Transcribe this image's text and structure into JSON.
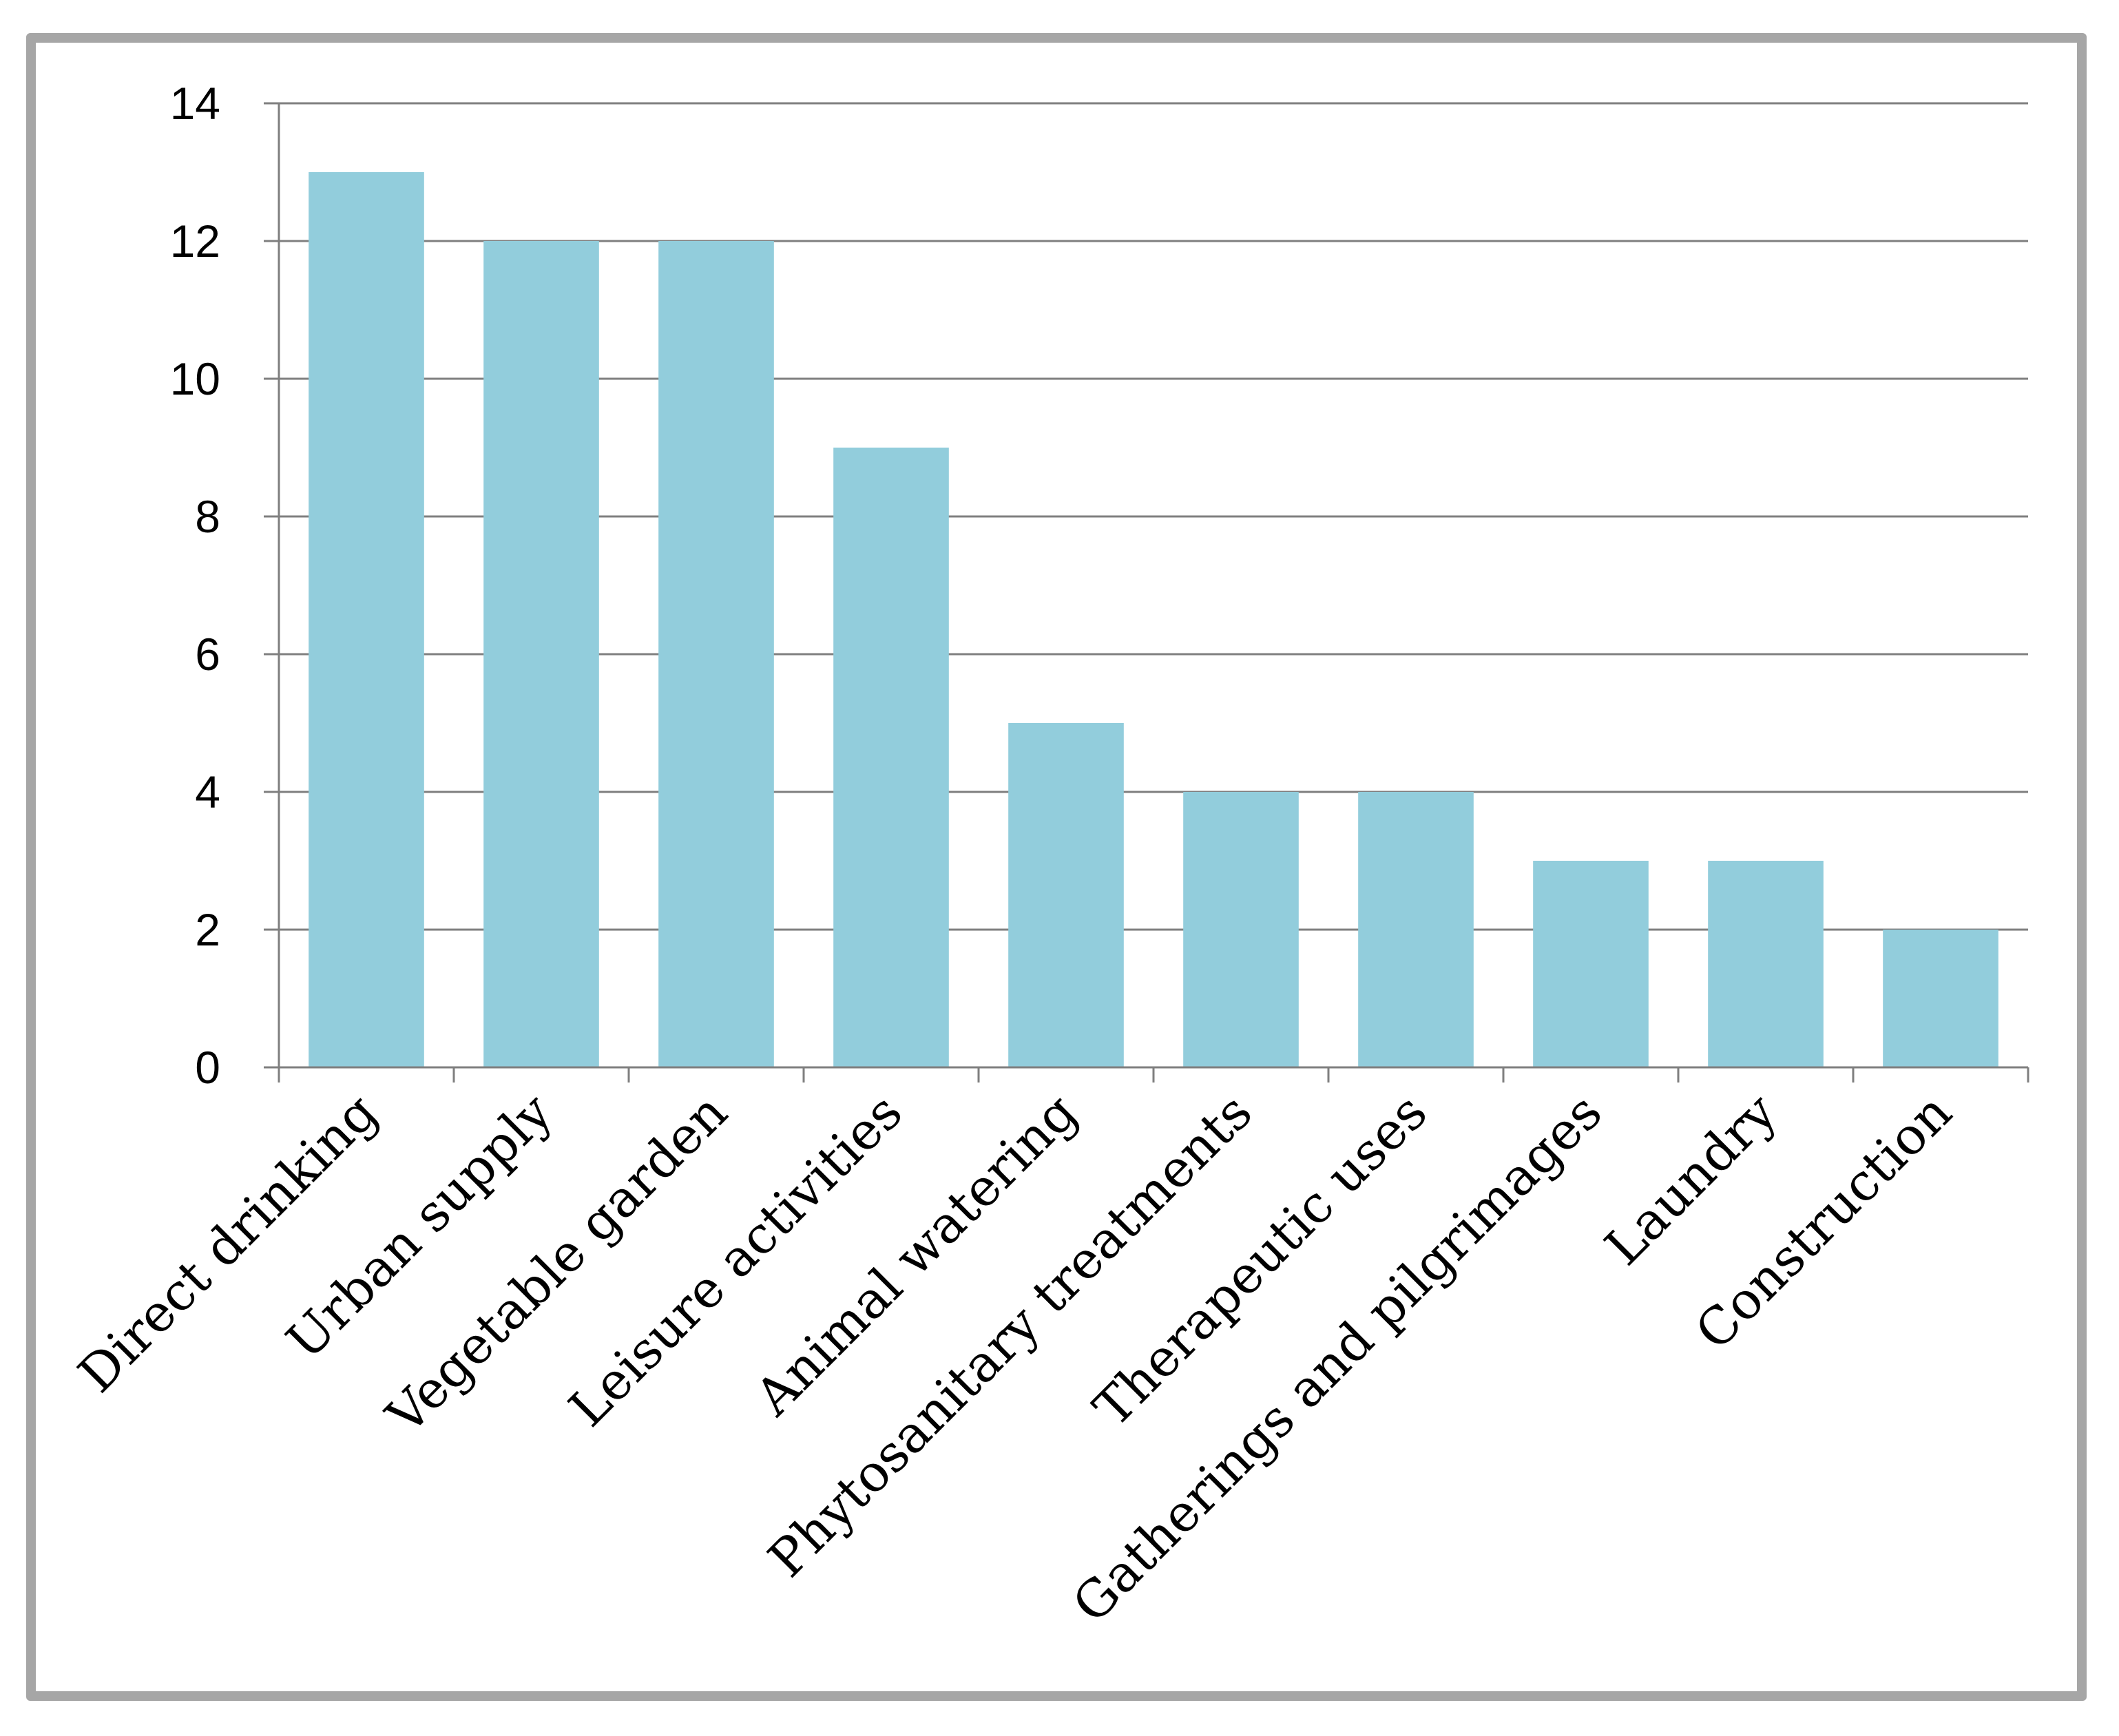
{
  "chart_data": {
    "type": "bar",
    "categories": [
      "Direct drinking",
      "Urban supply",
      "Vegetable garden",
      "Leisure activities",
      "Animal watering",
      "Phytosanitary treatments",
      "Therapeutic uses",
      "Gatherings and pilgrimages",
      "Laundry",
      "Construction"
    ],
    "values": [
      13,
      12,
      12,
      9,
      5,
      4,
      4,
      3,
      3,
      2
    ],
    "ylim": [
      0,
      14
    ],
    "yticks": [
      0,
      2,
      4,
      6,
      8,
      10,
      12,
      14
    ],
    "yticklabels": [
      "0",
      "2",
      "4",
      "6",
      "8",
      "10",
      "12",
      "14"
    ],
    "grid": true,
    "legend": "none",
    "bar_color": "#92cddc",
    "grid_color": "#7f7f7f",
    "frame_color": "#a6a6a6"
  }
}
